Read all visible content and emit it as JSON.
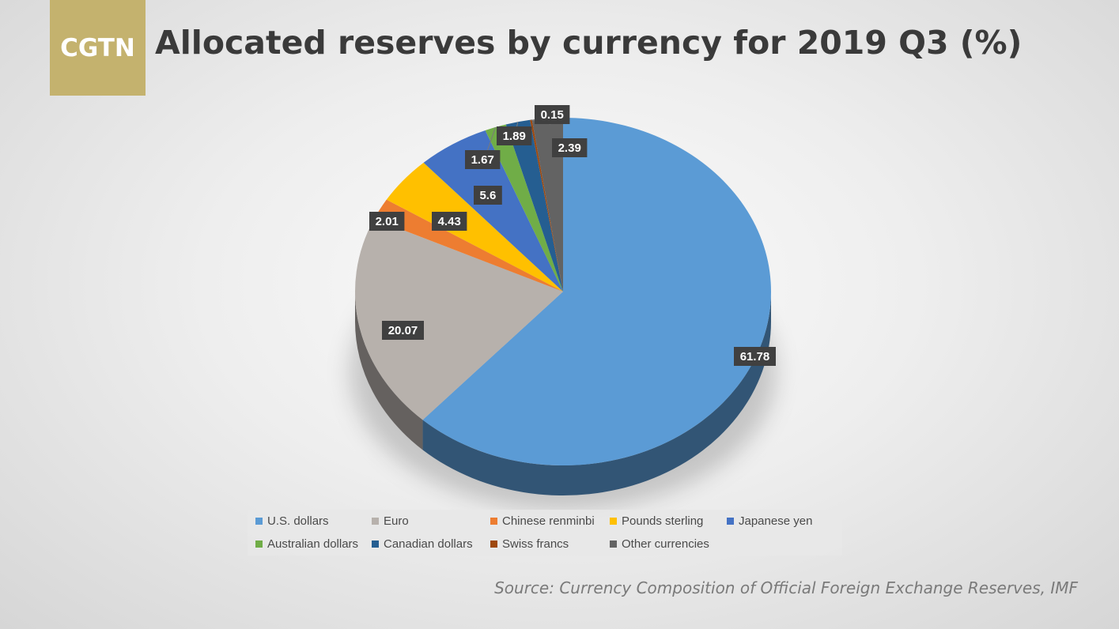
{
  "header": {
    "logo_text": "CGTN",
    "logo_color": "#c4b26e",
    "title": "Allocated reserves by currency for 2019 Q3 (%)"
  },
  "source": "Source: Currency Composition of Official Foreign Exchange Reserves, IMF",
  "chart_data": {
    "type": "pie",
    "title": "Allocated reserves by currency for 2019 Q3 (%)",
    "legend_position": "bottom",
    "slices": [
      {
        "name": "U.S. dollars",
        "value": 61.78,
        "label": "61.78",
        "color": "#5b9bd5"
      },
      {
        "name": "Euro",
        "value": 20.07,
        "label": "20.07",
        "color": "#b7b1ac"
      },
      {
        "name": "Chinese renminbi",
        "value": 2.01,
        "label": "2.01",
        "color": "#ed7d31"
      },
      {
        "name": "Pounds sterling",
        "value": 4.43,
        "label": "4.43",
        "color": "#ffc000"
      },
      {
        "name": "Japanese yen",
        "value": 5.6,
        "label": "5.6",
        "color": "#4472c4"
      },
      {
        "name": "Australian dollars",
        "value": 1.67,
        "label": "1.67",
        "color": "#70ad47"
      },
      {
        "name": "Canadian dollars",
        "value": 1.89,
        "label": "1.89",
        "color": "#255e91"
      },
      {
        "name": "Swiss francs",
        "value": 0.15,
        "label": "0.15",
        "color": "#9e480e"
      },
      {
        "name": "Other currencies",
        "value": 2.39,
        "label": "2.39",
        "color": "#636363"
      }
    ]
  }
}
